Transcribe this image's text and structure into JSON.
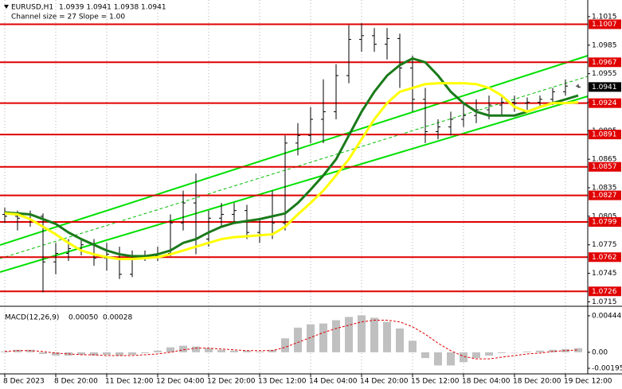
{
  "chart_data": [
    {
      "type": "candlestick",
      "title": "EURUSD,H1",
      "subtitle": "1.0939 1.0941 1.0938 1.0941",
      "annotation": "Channel size = 27 Slope = 1.00",
      "categories": [
        "8 Dec 2023",
        null,
        null,
        null,
        "8 Dec 20:00",
        null,
        null,
        null,
        "11 Dec 12:00",
        null,
        null,
        null,
        "12 Dec 04:00",
        null,
        null,
        null,
        "12 Dec 20:00",
        null,
        null,
        null,
        "13 Dec 12:00",
        null,
        null,
        null,
        "14 Dec 04:00",
        null,
        null,
        null,
        "14 Dec 20:00",
        null,
        null,
        null,
        "15 Dec 12:00",
        null,
        null,
        null,
        "18 Dec 04:00",
        null,
        null,
        null,
        "18 Dec 20:00",
        null,
        null,
        null,
        "19 Dec 12:00",
        null
      ],
      "open": [
        1.0807,
        1.0805,
        1.0803,
        1.0805,
        1.0757,
        1.0766,
        1.0771,
        1.0775,
        1.0761,
        1.0765,
        1.0744,
        1.0763,
        1.0763,
        1.0766,
        1.0798,
        1.0819,
        1.0781,
        1.0803,
        1.0807,
        1.0811,
        1.0788,
        1.0786,
        1.0798,
        1.0882,
        1.089,
        1.0907,
        1.0915,
        1.0953,
        1.0991,
        1.0995,
        1.0986,
        1.0992,
        1.0961,
        1.0928,
        1.0894,
        1.0899,
        1.0907,
        1.0911,
        1.0917,
        1.0922,
        1.0925,
        1.0924,
        1.0925,
        1.0928,
        1.0936,
        1.0942
      ],
      "high": [
        1.0814,
        1.0811,
        1.0811,
        1.0808,
        1.0777,
        1.0781,
        1.0781,
        1.0781,
        1.0777,
        1.0773,
        1.0769,
        1.0769,
        1.0773,
        1.0807,
        1.0832,
        1.085,
        1.0811,
        1.0819,
        1.0819,
        1.0817,
        1.0803,
        1.0832,
        1.089,
        1.0903,
        1.092,
        1.0949,
        1.0965,
        1.1006,
        1.1008,
        1.1003,
        1.1003,
        1.0997,
        1.0974,
        1.094,
        1.0907,
        1.0915,
        1.0924,
        1.0928,
        1.0932,
        1.093,
        1.0932,
        1.093,
        1.0932,
        1.094,
        1.0949,
        1.0944
      ],
      "low": [
        1.0798,
        1.079,
        1.0794,
        1.0725,
        1.0744,
        1.0758,
        1.0764,
        1.0753,
        1.0748,
        1.0739,
        1.0741,
        1.0758,
        1.0758,
        1.0763,
        1.079,
        1.0765,
        1.0773,
        1.0794,
        1.0798,
        1.0781,
        1.0777,
        1.0781,
        1.079,
        1.0869,
        1.0882,
        1.0882,
        1.0907,
        1.0945,
        1.0978,
        1.0978,
        1.097,
        1.094,
        1.0915,
        1.0882,
        1.0886,
        1.089,
        1.0899,
        1.0903,
        1.0907,
        1.0911,
        1.0915,
        1.0917,
        1.0919,
        1.0922,
        1.0932,
        1.094
      ],
      "close": [
        1.0805,
        1.0803,
        1.0807,
        1.0757,
        1.0766,
        1.0771,
        1.0775,
        1.0761,
        1.0765,
        1.0744,
        1.0763,
        1.0763,
        1.0766,
        1.0798,
        1.0819,
        1.0781,
        1.0803,
        1.0807,
        1.0811,
        1.0788,
        1.0786,
        1.0798,
        1.0882,
        1.089,
        1.0907,
        1.0915,
        1.0953,
        1.0991,
        1.0995,
        1.0986,
        1.0992,
        1.0961,
        1.0928,
        1.0894,
        1.0899,
        1.0907,
        1.0911,
        1.0917,
        1.0922,
        1.0925,
        1.0924,
        1.0925,
        1.0928,
        1.0936,
        1.0942,
        1.0941
      ],
      "candle_color": "#000000",
      "series": [
        {
          "color": "#1a7a1a",
          "values": [
            1.0809,
            1.0808,
            1.0807,
            1.0802,
            1.0797,
            1.0788,
            1.0781,
            1.0775,
            1.0769,
            1.0765,
            1.0763,
            1.0763,
            1.0765,
            1.0769,
            1.0777,
            1.0781,
            1.0788,
            1.0794,
            1.0798,
            1.08,
            1.0802,
            1.0805,
            1.0808,
            1.0819,
            1.0833,
            1.0848,
            1.0865,
            1.089,
            1.0915,
            1.0936,
            1.0953,
            1.0964,
            1.0971,
            1.0967,
            1.0953,
            1.0936,
            1.0924,
            1.0915,
            1.0911,
            1.0911,
            1.0911,
            1.0915,
            1.092,
            1.0924,
            1.0928,
            1.0932
          ]
        },
        {
          "color": "#ffff00",
          "values": [
            1.0808,
            1.0807,
            1.0802,
            1.0794,
            1.0786,
            1.0777,
            1.0769,
            1.0765,
            1.0762,
            1.076,
            1.076,
            1.0761,
            1.0762,
            1.0765,
            1.0769,
            1.0773,
            1.0777,
            1.0781,
            1.0783,
            1.0784,
            1.0785,
            1.0786,
            1.0794,
            1.0807,
            1.0819,
            1.0832,
            1.0848,
            1.0865,
            1.0886,
            1.0907,
            1.0924,
            1.0936,
            1.094,
            1.0944,
            1.0945,
            1.0945,
            1.0945,
            1.0944,
            1.094,
            1.0932,
            1.092,
            1.0915,
            1.092,
            1.0924,
            1.0924,
            1.0925
          ]
        }
      ],
      "levels": [
        1.1007,
        1.0967,
        1.0924,
        1.0891,
        1.0857,
        1.0827,
        1.0799,
        1.0762,
        1.0726
      ],
      "level_color": "#e00000",
      "last_price": 1.0941,
      "ylim": [
        1.0712,
        1.103
      ],
      "yticks": [
        1.0715,
        1.0745,
        1.0775,
        1.0805,
        1.0835,
        1.0865,
        1.0895,
        1.0925,
        1.0955,
        1.0985,
        1.1015
      ],
      "grid": true
    },
    {
      "type": "macd",
      "title": "MACD(12,26,9)",
      "readout": [
        {
          "value": 0.0005,
          "label": "0.00050"
        },
        {
          "value": 0.00028,
          "label": "0.00028"
        }
      ],
      "histogram": {
        "color": "#c0c0c0",
        "values": [
          0.0001,
          0.0003,
          0.0003,
          -0.0002,
          -0.0004,
          -0.0004,
          -0.0003,
          -0.0004,
          -0.0003,
          -0.0004,
          -0.0003,
          -0.0001,
          0.0002,
          0.0006,
          0.0008,
          0.0007,
          0.0005,
          0.0003,
          0.0002,
          0.0002,
          0.0001,
          0.0003,
          0.0017,
          0.003,
          0.0034,
          0.0035,
          0.0039,
          0.0043,
          0.0045,
          0.0042,
          0.0037,
          0.0029,
          0.0014,
          -0.0007,
          -0.0016,
          -0.0016,
          -0.0012,
          -0.0007,
          -0.0004,
          -0.0001,
          0,
          0.0001,
          0.0002,
          0.0003,
          0.0004,
          0.0005
        ]
      },
      "signal": {
        "color": "#e00000",
        "values": [
          0.0001,
          0.0002,
          0.0002,
          0.0001,
          -0.0001,
          -0.0002,
          -0.0003,
          -0.0003,
          -0.0004,
          -0.0004,
          -0.0004,
          -0.0003,
          -0.0002,
          0,
          0.0003,
          0.0005,
          0.0005,
          0.0004,
          0.0003,
          0.0002,
          0.0002,
          0.0002,
          0.0006,
          0.0012,
          0.0018,
          0.0024,
          0.0029,
          0.0033,
          0.0037,
          0.0039,
          0.0039,
          0.0037,
          0.0031,
          0.0022,
          0.0011,
          0.0002,
          -0.0005,
          -0.0008,
          -0.0008,
          -0.0006,
          -0.0004,
          -0.0002,
          -0.0001,
          0.0001,
          0.0002,
          0.00028
        ]
      },
      "ylim": [
        -0.00224,
        0.00521
      ],
      "yticks": [
        0.00444,
        {
          "value": 0,
          "label": "0.00"
        },
        -0.00195
      ]
    }
  ]
}
